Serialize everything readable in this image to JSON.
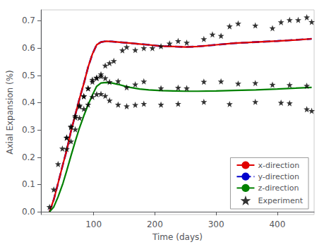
{
  "chart_data": {
    "type": "line",
    "xlabel": "Time (days)",
    "ylabel": "Axial Expansion (%)",
    "xlim": [
      14,
      460
    ],
    "ylim": [
      -0.01,
      0.74
    ],
    "xticks": [
      100,
      200,
      300,
      400
    ],
    "yticks": [
      {
        "value": 0.0,
        "label": "0.0"
      },
      0.1,
      0.2,
      0.3,
      0.4,
      0.5,
      0.6,
      0.7
    ],
    "grid": false,
    "legend": "lower right",
    "series": [
      {
        "name": "x-direction",
        "type": "line",
        "color": "#e00000",
        "line_style": "solid",
        "x": [
          28,
          35,
          42,
          50,
          56,
          63,
          70,
          77,
          84,
          91,
          98,
          105,
          112,
          120,
          130,
          140,
          150,
          160,
          175,
          190,
          210,
          230,
          250,
          270,
          300,
          330,
          365,
          400,
          430,
          456
        ],
        "values": [
          0.0,
          0.045,
          0.105,
          0.175,
          0.225,
          0.295,
          0.355,
          0.415,
          0.47,
          0.53,
          0.578,
          0.612,
          0.622,
          0.625,
          0.624,
          0.622,
          0.62,
          0.618,
          0.615,
          0.612,
          0.607,
          0.606,
          0.604,
          0.606,
          0.612,
          0.618,
          0.622,
          0.626,
          0.63,
          0.634
        ]
      },
      {
        "name": "y-direction",
        "type": "line",
        "color": "#0000cc",
        "line_style": "dashed",
        "x": [
          28,
          35,
          42,
          50,
          56,
          63,
          70,
          77,
          84,
          91,
          98,
          105,
          112,
          120,
          130,
          140,
          150,
          160,
          175,
          190,
          210,
          230,
          250,
          270,
          300,
          330,
          365,
          400,
          430,
          456
        ],
        "values": [
          0.0,
          0.045,
          0.105,
          0.175,
          0.225,
          0.295,
          0.355,
          0.415,
          0.47,
          0.53,
          0.578,
          0.612,
          0.622,
          0.625,
          0.624,
          0.622,
          0.62,
          0.618,
          0.615,
          0.612,
          0.607,
          0.606,
          0.604,
          0.606,
          0.612,
          0.618,
          0.622,
          0.626,
          0.63,
          0.634
        ]
      },
      {
        "name": "z-direction",
        "type": "line",
        "color": "#008000",
        "line_style": "solid",
        "x": [
          28,
          35,
          42,
          50,
          56,
          63,
          70,
          77,
          84,
          91,
          98,
          105,
          112,
          120,
          130,
          140,
          150,
          160,
          175,
          190,
          210,
          230,
          250,
          270,
          300,
          330,
          365,
          400,
          430,
          456
        ],
        "values": [
          0.0,
          0.018,
          0.055,
          0.105,
          0.15,
          0.205,
          0.258,
          0.308,
          0.352,
          0.392,
          0.428,
          0.46,
          0.472,
          0.474,
          0.472,
          0.467,
          0.461,
          0.456,
          0.45,
          0.447,
          0.444,
          0.443,
          0.442,
          0.442,
          0.443,
          0.445,
          0.447,
          0.45,
          0.453,
          0.456
        ]
      },
      {
        "name": "Experiment",
        "type": "scatter",
        "color": "#000000",
        "marker": "star",
        "x": [
          28,
          35,
          42,
          49,
          56,
          63,
          70,
          77,
          84,
          91,
          98,
          105,
          112,
          119,
          126,
          133,
          147,
          154,
          168,
          182,
          196,
          210,
          224,
          238,
          252,
          280,
          294,
          308,
          322,
          336,
          364,
          392,
          406,
          420,
          434,
          448,
          456,
          56,
          63,
          70,
          77,
          84,
          91,
          98,
          105,
          112,
          119,
          126,
          140,
          154,
          168,
          182,
          210,
          238,
          252,
          280,
          308,
          336,
          364,
          392,
          420,
          448,
          56,
          63,
          70,
          77,
          84,
          91,
          98,
          105,
          112,
          119,
          126,
          140,
          154,
          168,
          182,
          210,
          238,
          280,
          322,
          364,
          406,
          420,
          448,
          456
        ],
        "values": [
          0.018,
          0.082,
          0.175,
          0.232,
          0.272,
          0.313,
          0.352,
          0.39,
          0.423,
          0.452,
          0.484,
          0.492,
          0.504,
          0.536,
          0.545,
          0.553,
          0.592,
          0.604,
          0.593,
          0.6,
          0.6,
          0.607,
          0.617,
          0.626,
          0.62,
          0.633,
          0.65,
          0.645,
          0.68,
          0.69,
          0.683,
          0.673,
          0.695,
          0.703,
          0.703,
          0.713,
          0.696,
          0.272,
          0.31,
          0.346,
          0.386,
          0.424,
          0.453,
          0.477,
          0.49,
          0.497,
          0.49,
          0.476,
          0.479,
          0.456,
          0.467,
          0.478,
          0.453,
          0.455,
          0.453,
          0.477,
          0.478,
          0.47,
          0.472,
          0.466,
          0.465,
          0.462,
          0.23,
          0.258,
          0.302,
          0.344,
          0.377,
          0.393,
          0.421,
          0.431,
          0.432,
          0.425,
          0.408,
          0.393,
          0.387,
          0.392,
          0.396,
          0.393,
          0.396,
          0.403,
          0.395,
          0.403,
          0.4,
          0.398,
          0.376,
          0.37
        ]
      }
    ]
  }
}
